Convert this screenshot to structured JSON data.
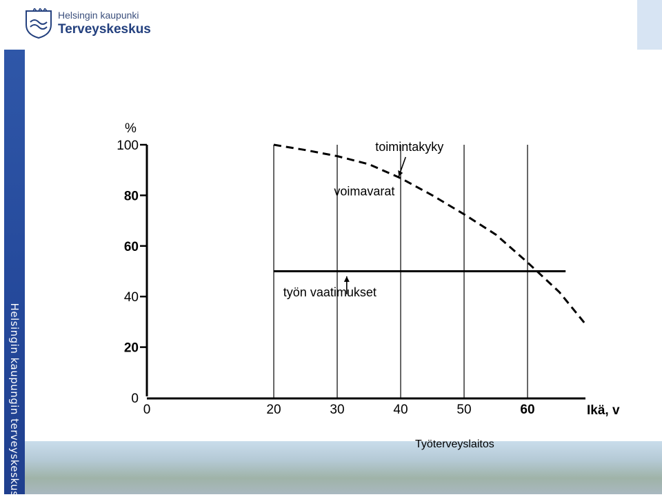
{
  "header": {
    "org_line1": "Helsingin kaupunki",
    "org_line2": "Terveyskeskus",
    "logo_icon": "city-crest-icon"
  },
  "sidebar": {
    "vertical_text": "Helsingin kaupungin terveyskeskus"
  },
  "colors": {
    "brand_blue": "#23407e",
    "band_blue": "#2f57a8",
    "corner_box": "#d7e4f3"
  },
  "footer": {
    "credit": "Työterveyslaitos"
  },
  "chart_data": {
    "type": "line",
    "y_unit": "%",
    "xlabel": "Ikä, v",
    "x_ticks": [
      0,
      20,
      30,
      40,
      50,
      60
    ],
    "y_ticks": [
      0,
      20,
      40,
      60,
      80,
      100
    ],
    "xlim": [
      0,
      70
    ],
    "ylim": [
      0,
      100
    ],
    "vertical_gridlines_at": [
      20,
      30,
      40,
      50,
      60
    ],
    "series": [
      {
        "style": "dashed",
        "x": [
          20,
          25,
          30,
          35,
          40,
          45,
          50,
          55,
          60,
          65,
          69
        ],
        "y": [
          100,
          97.9,
          95.5,
          92.3,
          86.8,
          80,
          72.5,
          64.5,
          53.5,
          41.8,
          29.5
        ]
      },
      {
        "style": "solid",
        "x": [
          20,
          66
        ],
        "y": [
          50,
          50
        ]
      }
    ],
    "annotations": [
      {
        "text": "toimintakyky",
        "x": 36,
        "y": 97.5,
        "arrow_to": [
          39.7,
          87.5
        ]
      },
      {
        "text": "voimavarat",
        "x": 29.5,
        "y": 80
      },
      {
        "text": "työn vaatimukset",
        "x": 21.5,
        "y": 40,
        "arrow_to": [
          31.5,
          48
        ]
      }
    ]
  }
}
